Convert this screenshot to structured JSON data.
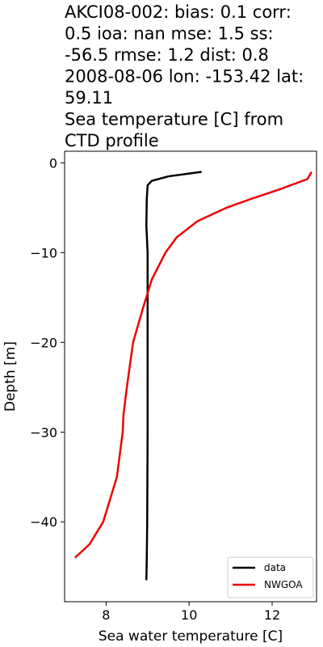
{
  "chart_data": {
    "type": "line",
    "title": [
      "AKCI08-002: bias: 0.1  corr:",
      "0.5  ioa: nan  mse: 1.5  ss:",
      "-56.5  rmse: 1.2  dist: 0.8",
      "2008-08-06 lon: -153.42 lat:",
      "59.11",
      "Sea temperature [C] from",
      "CTD profile"
    ],
    "xlabel": "Sea water temperature [C]",
    "ylabel": "Depth [m]",
    "xlim": [
      7.0,
      13.07
    ],
    "ylim": [
      -48.9,
      1.3
    ],
    "xticks": [
      8,
      10,
      12
    ],
    "yticks": [
      0,
      {
        "value": -10,
        "label": "−10"
      },
      {
        "value": -20,
        "label": "−20"
      },
      {
        "value": -30,
        "label": "−30"
      },
      {
        "value": -40,
        "label": "−40"
      }
    ],
    "legend": "lower right",
    "series": [
      {
        "name": "data",
        "color": "#000000",
        "x": [
          10.3,
          9.5,
          9.1,
          9.0,
          8.98,
          8.97,
          9.0,
          9.0,
          9.0,
          8.99,
          8.98,
          8.97
        ],
        "values": [
          -1.0,
          -1.5,
          -2.0,
          -2.5,
          -4.0,
          -7.0,
          -10.0,
          -20.0,
          -30.0,
          -40.0,
          -44.0,
          -46.5
        ]
      },
      {
        "name": "NWGOA",
        "color": "#ee0000",
        "x": [
          12.95,
          12.85,
          12.15,
          11.5,
          10.9,
          10.2,
          9.7,
          9.43,
          9.1,
          8.9,
          8.65,
          8.5,
          8.42,
          8.4,
          8.26,
          7.93,
          7.6,
          7.25
        ],
        "values": [
          -1.0,
          -1.8,
          -3.0,
          -4.0,
          -5.0,
          -6.5,
          -8.3,
          -10.0,
          -13.0,
          -16.0,
          -20.0,
          -25.0,
          -28.0,
          -30.0,
          -35.0,
          -40.0,
          -42.5,
          -44.0
        ]
      }
    ]
  }
}
